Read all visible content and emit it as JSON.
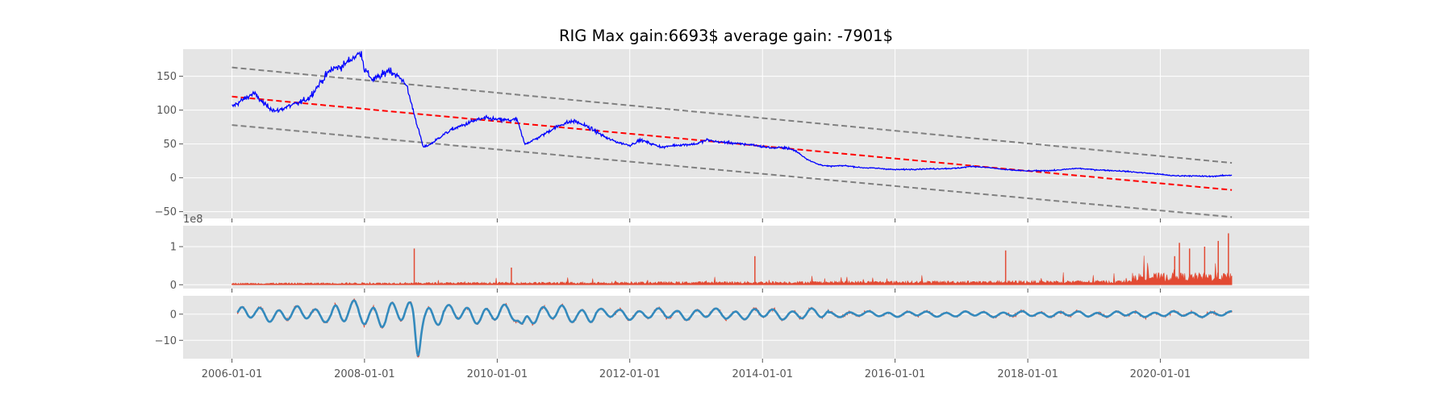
{
  "chart_data": {
    "title": "RIG Max gain:6693$  average gain: -7901$",
    "type": "line",
    "x_tick_labels": [
      "2006-01-01",
      "2008-01-01",
      "2010-01-01",
      "2012-01-01",
      "2014-01-01",
      "2016-01-01",
      "2018-01-01",
      "2020-01-01"
    ],
    "x_range": [
      "2005-04-07",
      "2022-03-31"
    ],
    "x_data_range": [
      "2006-01-01",
      "2021-01-29"
    ],
    "grid": true,
    "colors": {
      "axes_background": "#e5e5e5",
      "grid": "#ffffff",
      "price": "#0000ff",
      "trend": "#ff0000",
      "band": "#808080",
      "volume": "#e24a33",
      "oscillator_fast": "#e24a33",
      "oscillator_slow": "#348abd",
      "tick_text": "#555555"
    },
    "panels": [
      {
        "id": "price",
        "ylim": [
          -60,
          190
        ],
        "y_ticks": [
          -50,
          0,
          50,
          100,
          150
        ],
        "y_tick_labels": [
          "−50",
          "0",
          "50",
          "100",
          "150"
        ],
        "series": [
          {
            "kind": "price",
            "x": [
              "2006-01-01",
              "2006-03-01",
              "2006-05-01",
              "2006-07-01",
              "2006-09-01",
              "2006-11-01",
              "2007-01-01",
              "2007-03-01",
              "2007-05-01",
              "2007-07-01",
              "2007-09-01",
              "2007-11-01",
              "2007-12-15",
              "2008-01-01",
              "2008-02-15",
              "2008-04-01",
              "2008-05-15",
              "2008-07-01",
              "2008-08-15",
              "2008-09-15",
              "2008-10-15",
              "2008-11-20",
              "2009-01-01",
              "2009-03-01",
              "2009-05-01",
              "2009-07-01",
              "2009-09-01",
              "2009-11-01",
              "2010-01-01",
              "2010-03-01",
              "2010-04-20",
              "2010-06-01",
              "2010-07-15",
              "2010-09-01",
              "2010-11-01",
              "2011-01-01",
              "2011-03-01",
              "2011-05-01",
              "2011-07-01",
              "2011-09-01",
              "2011-11-01",
              "2012-01-01",
              "2012-03-01",
              "2012-05-01",
              "2012-07-01",
              "2012-09-01",
              "2012-11-01",
              "2013-01-01",
              "2013-03-01",
              "2013-05-01",
              "2013-07-01",
              "2013-09-01",
              "2013-11-01",
              "2014-01-01",
              "2014-03-01",
              "2014-05-01",
              "2014-07-01",
              "2014-09-01",
              "2014-11-01",
              "2015-01-01",
              "2015-04-01",
              "2015-07-01",
              "2015-10-01",
              "2016-01-01",
              "2016-06-01",
              "2016-12-01",
              "2017-03-01",
              "2017-06-01",
              "2017-09-01",
              "2018-01-01",
              "2018-06-01",
              "2018-10-01",
              "2019-01-01",
              "2019-06-01",
              "2019-12-01",
              "2020-03-15",
              "2020-06-01",
              "2020-10-01",
              "2021-01-29"
            ],
            "y": [
              105,
              115,
              125,
              108,
              98,
              105,
              110,
              118,
              140,
              160,
              165,
              178,
              185,
              160,
              145,
              150,
              160,
              150,
              140,
              110,
              80,
              45,
              50,
              62,
              72,
              78,
              85,
              88,
              86,
              85,
              86,
              50,
              55,
              62,
              72,
              80,
              84,
              77,
              68,
              58,
              52,
              48,
              56,
              50,
              45,
              48,
              49,
              50,
              56,
              53,
              52,
              50,
              49,
              46,
              44,
              45,
              40,
              28,
              20,
              17,
              18,
              15,
              14,
              12,
              13,
              14,
              17,
              15,
              12,
              10,
              11,
              14,
              12,
              10,
              6,
              3,
              3,
              2,
              4
            ]
          },
          {
            "kind": "trend",
            "x": [
              "2006-01-01",
              "2021-01-29"
            ],
            "y": [
              120,
              -18
            ]
          },
          {
            "kind": "band",
            "x": [
              "2006-01-01",
              "2021-01-29"
            ],
            "y": [
              163,
              22
            ]
          },
          {
            "kind": "band",
            "x": [
              "2006-01-01",
              "2021-01-29"
            ],
            "y": [
              78,
              -58
            ]
          }
        ]
      },
      {
        "id": "volume",
        "ylim": [
          -0.1,
          1.55
        ],
        "y_ticks": [
          0,
          1
        ],
        "y_tick_labels": [
          "0",
          "1"
        ],
        "offset_text": "1e8",
        "spikes": {
          "x": [
            "2008-10-01",
            "2010-03-20",
            "2013-11-20",
            "2017-09-01",
            "2020-03-20",
            "2020-04-15",
            "2020-06-10",
            "2020-09-01",
            "2020-11-15",
            "2021-01-10"
          ],
          "y": [
            0.95,
            0.45,
            0.75,
            0.9,
            0.75,
            1.1,
            0.95,
            1.0,
            1.15,
            1.35
          ]
        }
      },
      {
        "id": "oscillator",
        "ylim": [
          -17,
          7
        ],
        "y_ticks": [
          -10,
          0
        ],
        "y_tick_labels": [
          "−10",
          "0"
        ]
      }
    ]
  }
}
